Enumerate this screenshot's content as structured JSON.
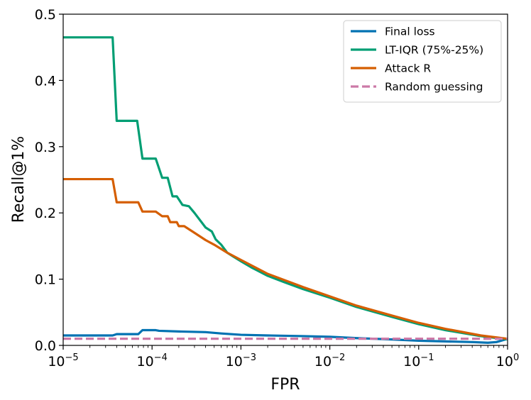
{
  "chart_data": {
    "type": "line",
    "xscale": "log",
    "xlabel": "FPR",
    "ylabel": "Recall@1%",
    "xlim": [
      1e-05,
      1
    ],
    "ylim": [
      0,
      0.5
    ],
    "xticks": [
      {
        "value": 1e-05,
        "base": "10",
        "exp": "−5"
      },
      {
        "value": 0.0001,
        "base": "10",
        "exp": "−4"
      },
      {
        "value": 0.001,
        "base": "10",
        "exp": "−3"
      },
      {
        "value": 0.01,
        "base": "10",
        "exp": "−2"
      },
      {
        "value": 0.1,
        "base": "10",
        "exp": "−1"
      },
      {
        "value": 1,
        "base": "10",
        "exp": "0"
      }
    ],
    "yticks": [
      {
        "value": 0.0,
        "label": "0.0"
      },
      {
        "value": 0.1,
        "label": "0.1"
      },
      {
        "value": 0.2,
        "label": "0.2"
      },
      {
        "value": 0.3,
        "label": "0.3"
      },
      {
        "value": 0.4,
        "label": "0.4"
      },
      {
        "value": 0.5,
        "label": "0.5"
      }
    ],
    "legend_position": "top-right",
    "series": [
      {
        "name": "Final loss",
        "color": "#0072b2",
        "dash": "solid",
        "points": [
          [
            1e-05,
            0.015
          ],
          [
            3.6e-05,
            0.015
          ],
          [
            4e-05,
            0.017
          ],
          [
            7e-05,
            0.017
          ],
          [
            7.8e-05,
            0.023
          ],
          [
            0.00011,
            0.023
          ],
          [
            0.00012,
            0.022
          ],
          [
            0.0002,
            0.021
          ],
          [
            0.0004,
            0.02
          ],
          [
            0.0006,
            0.018
          ],
          [
            0.001,
            0.016
          ],
          [
            0.002,
            0.015
          ],
          [
            0.005,
            0.014
          ],
          [
            0.01,
            0.013
          ],
          [
            0.02,
            0.011
          ],
          [
            0.05,
            0.009
          ],
          [
            0.1,
            0.007
          ],
          [
            0.2,
            0.006
          ],
          [
            0.4,
            0.005
          ],
          [
            0.6,
            0.004
          ],
          [
            0.75,
            0.005
          ],
          [
            1,
            0.01
          ]
        ]
      },
      {
        "name": "LT-IQR (75%-25%)",
        "color": "#009e73",
        "dash": "solid",
        "points": [
          [
            1e-05,
            0.465
          ],
          [
            3.6e-05,
            0.465
          ],
          [
            4e-05,
            0.339
          ],
          [
            6.8e-05,
            0.339
          ],
          [
            7.8e-05,
            0.282
          ],
          [
            0.00011,
            0.282
          ],
          [
            0.00013,
            0.253
          ],
          [
            0.00015,
            0.253
          ],
          [
            0.00017,
            0.225
          ],
          [
            0.00019,
            0.225
          ],
          [
            0.00022,
            0.212
          ],
          [
            0.00026,
            0.21
          ],
          [
            0.0003,
            0.2
          ],
          [
            0.0004,
            0.178
          ],
          [
            0.00047,
            0.172
          ],
          [
            0.00052,
            0.16
          ],
          [
            0.0006,
            0.152
          ],
          [
            0.0007,
            0.14
          ],
          [
            0.0008,
            0.135
          ],
          [
            0.001,
            0.127
          ],
          [
            0.0013,
            0.118
          ],
          [
            0.002,
            0.105
          ],
          [
            0.003,
            0.096
          ],
          [
            0.005,
            0.085
          ],
          [
            0.01,
            0.072
          ],
          [
            0.02,
            0.058
          ],
          [
            0.05,
            0.043
          ],
          [
            0.1,
            0.032
          ],
          [
            0.2,
            0.023
          ],
          [
            0.5,
            0.014
          ],
          [
            1,
            0.009
          ]
        ]
      },
      {
        "name": "Attack R",
        "color": "#d55e00",
        "dash": "solid",
        "points": [
          [
            1e-05,
            0.251
          ],
          [
            3.6e-05,
            0.251
          ],
          [
            4e-05,
            0.216
          ],
          [
            7e-05,
            0.216
          ],
          [
            7.8e-05,
            0.202
          ],
          [
            0.00011,
            0.202
          ],
          [
            0.00013,
            0.195
          ],
          [
            0.00015,
            0.195
          ],
          [
            0.00016,
            0.186
          ],
          [
            0.00019,
            0.186
          ],
          [
            0.0002,
            0.18
          ],
          [
            0.00023,
            0.18
          ],
          [
            0.0003,
            0.17
          ],
          [
            0.0004,
            0.159
          ],
          [
            0.0005,
            0.152
          ],
          [
            0.0007,
            0.14
          ],
          [
            0.001,
            0.129
          ],
          [
            0.002,
            0.108
          ],
          [
            0.005,
            0.088
          ],
          [
            0.01,
            0.074
          ],
          [
            0.02,
            0.06
          ],
          [
            0.05,
            0.045
          ],
          [
            0.1,
            0.034
          ],
          [
            0.2,
            0.025
          ],
          [
            0.5,
            0.015
          ],
          [
            1,
            0.01
          ]
        ]
      },
      {
        "name": "Random guessing",
        "color": "#cc79a7",
        "dash": "dashed",
        "points": [
          [
            1e-05,
            0.01
          ],
          [
            1,
            0.01
          ]
        ]
      }
    ]
  }
}
